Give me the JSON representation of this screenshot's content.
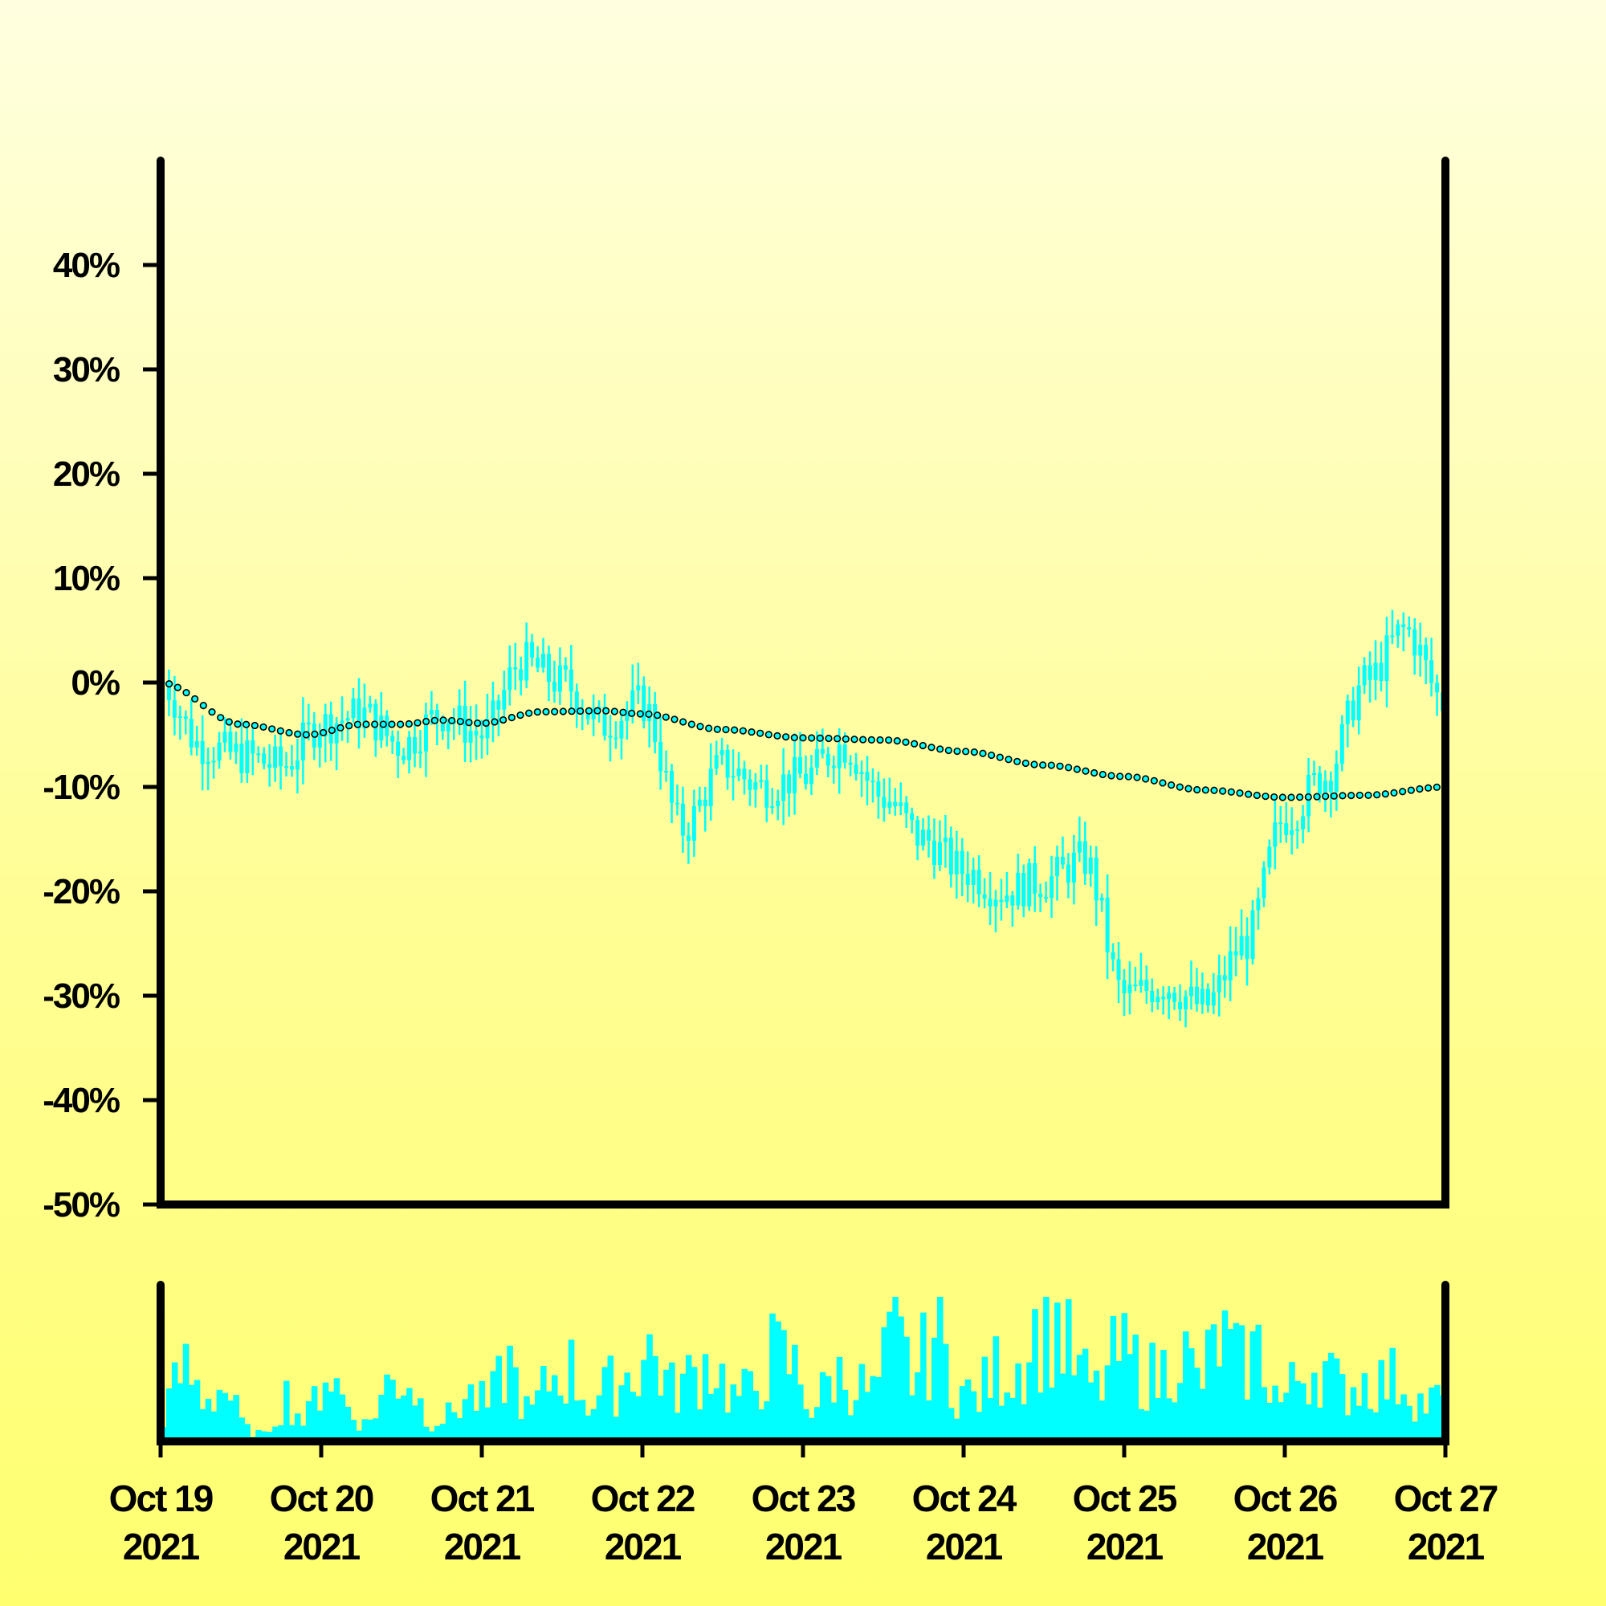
{
  "chart_data": [
    {
      "type": "candlestick",
      "y_axis": {
        "ticks": [
          40,
          30,
          20,
          10,
          0,
          -10,
          -20,
          -30,
          -40,
          -50
        ],
        "tick_labels": [
          "40%",
          "30%",
          "20%",
          "10%",
          "0%",
          "-10%",
          "-20%",
          "-30%",
          "-40%",
          "-50%"
        ],
        "ylim": [
          -50,
          50
        ]
      },
      "x_axis": {
        "type": "date",
        "xlim": [
          "2021-10-19",
          "2021-10-27"
        ],
        "ticks": [
          "2021-10-19",
          "2021-10-20",
          "2021-10-21",
          "2021-10-22",
          "2021-10-23",
          "2021-10-24",
          "2021-10-25",
          "2021-10-26",
          "2021-10-27"
        ],
        "tick_labels": [
          [
            "Oct 19",
            "2021"
          ],
          [
            "Oct 20",
            "2021"
          ],
          [
            "Oct 21",
            "2021"
          ],
          [
            "Oct 22",
            "2021"
          ],
          [
            "Oct 23",
            "2021"
          ],
          [
            "Oct 24",
            "2021"
          ],
          [
            "Oct 25",
            "2021"
          ],
          [
            "Oct 26",
            "2021"
          ],
          [
            "Oct 27",
            "2021"
          ]
        ]
      },
      "series": [
        {
          "kind": "candles",
          "color": "#00ffff",
          "x": [
            "2021-10-19T00:00",
            "2021-10-19T06:00",
            "2021-10-19T12:00",
            "2021-10-19T18:00",
            "2021-10-20T00:00",
            "2021-10-20T06:00",
            "2021-10-20T12:00",
            "2021-10-20T18:00",
            "2021-10-21T00:00",
            "2021-10-21T06:00",
            "2021-10-21T12:00",
            "2021-10-21T18:00",
            "2021-10-22T00:00",
            "2021-10-22T06:00",
            "2021-10-22T12:00",
            "2021-10-22T18:00",
            "2021-10-23T00:00",
            "2021-10-23T06:00",
            "2021-10-23T12:00",
            "2021-10-23T18:00",
            "2021-10-24T00:00",
            "2021-10-24T06:00",
            "2021-10-24T12:00",
            "2021-10-24T18:00",
            "2021-10-25T00:00",
            "2021-10-25T06:00",
            "2021-10-25T12:00",
            "2021-10-25T18:00",
            "2021-10-26T00:00",
            "2021-10-26T06:00",
            "2021-10-26T12:00",
            "2021-10-26T18:00",
            "2021-10-27T00:00"
          ],
          "close": [
            0,
            -6,
            -7,
            -8,
            -4,
            -3,
            -6,
            -3,
            -5,
            2,
            0,
            -4,
            -2,
            -14,
            -8,
            -10,
            -9,
            -6,
            -11,
            -15,
            -18,
            -20,
            -19,
            -17,
            -30,
            -29,
            -31,
            -25,
            -13,
            -9,
            0,
            5,
            -2
          ]
        },
        {
          "kind": "line",
          "style": "dotted-markers",
          "color": "#00ffff",
          "x": [
            "2021-10-19T00:00",
            "2021-10-19T12:00",
            "2021-10-19T22:00",
            "2021-10-20T06:00",
            "2021-10-20T12:00",
            "2021-10-20T18:00",
            "2021-10-21T00:00",
            "2021-10-21T09:00",
            "2021-10-21T18:00",
            "2021-10-22T00:00",
            "2021-10-22T12:00",
            "2021-10-23T00:00",
            "2021-10-23T12:00",
            "2021-10-24T00:00",
            "2021-10-24T12:00",
            "2021-10-25T00:00",
            "2021-10-25T12:00",
            "2021-10-26T00:00",
            "2021-10-26T12:00",
            "2021-10-27T00:00"
          ],
          "y": [
            0,
            -4,
            -5,
            -4,
            -4,
            -3.6,
            -3.9,
            -2.8,
            -2.7,
            -3,
            -4.5,
            -5.3,
            -5.5,
            -6.6,
            -7.9,
            -9,
            -10.3,
            -11,
            -10.8,
            -10
          ]
        }
      ],
      "volume": {
        "type": "bar",
        "color": "#00ffff",
        "note_scale": "relative",
        "values": [
          0.22,
          0.6,
          0.35,
          0.45,
          0.1,
          0.05,
          0.38,
          0.14,
          0.62,
          0.3,
          0.12,
          0.45,
          0.55,
          0.18,
          0.2,
          0.38,
          0.28,
          0.65,
          0.2,
          0.5,
          0.6,
          0.3,
          0.45,
          0.55,
          0.75,
          0.42,
          0.52,
          0.68,
          0.36,
          0.4,
          0.7,
          0.62,
          0.25,
          0.55,
          0.48,
          0.38,
          0.86,
          0.5,
          0.9,
          0.45,
          0.34,
          0.58,
          0.6,
          0.9,
          0.95,
          0.58,
          0.4,
          0.72,
          0.6,
          0.5,
          0.8,
          0.45,
          0.85,
          0.6,
          0.75,
          0.3,
          0.55,
          0.65,
          0.4,
          0.5,
          0.48,
          0.52,
          0.3,
          0.35
        ]
      }
    }
  ]
}
